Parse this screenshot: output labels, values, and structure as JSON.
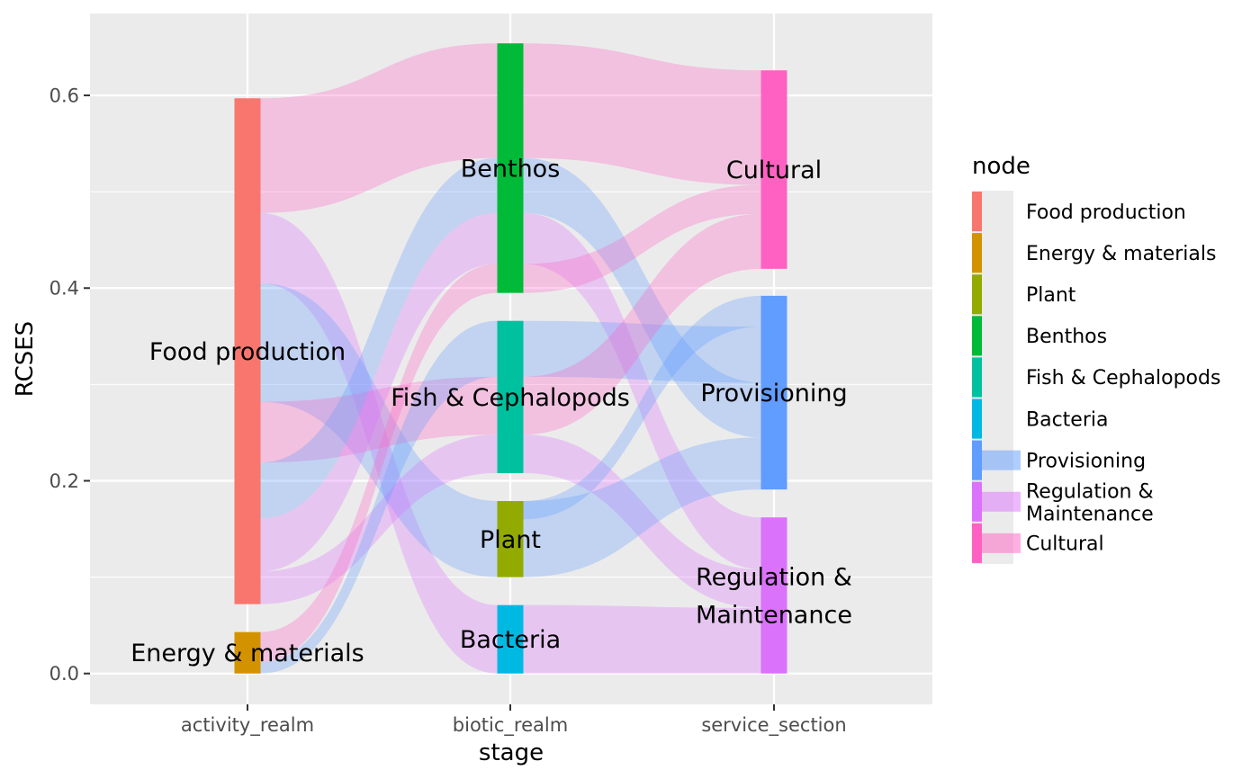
{
  "chart_data": {
    "type": "sankey",
    "title": "",
    "xlabel": "stage",
    "ylabel": "RCSES",
    "ylim": [
      -0.032,
      0.685
    ],
    "yticks": [
      0.0,
      0.2,
      0.4,
      0.6
    ],
    "ytick_labels": [
      "0.0",
      "0.2",
      "0.4",
      "0.6"
    ],
    "stages": [
      "activity_realm",
      "biotic_realm",
      "service_section"
    ],
    "node_colors": {
      "Food production": "#F8766D",
      "Energy & materials": "#D39200",
      "Plant": "#93AA00",
      "Benthos": "#00BA38",
      "Fish & Cephalopods": "#00C19F",
      "Bacteria": "#00B9E3",
      "Provisioning": "#619CFF",
      "Regulation & Maintenance": "#DB72FB",
      "Cultural": "#FF61C3"
    },
    "nodes": [
      {
        "id": "fp",
        "name": "Food production",
        "stage": 0,
        "bottom": 0.072,
        "top": 0.597
      },
      {
        "id": "em",
        "name": "Energy & materials",
        "stage": 0,
        "bottom": 0.0,
        "top": 0.043
      },
      {
        "id": "bn",
        "name": "Benthos",
        "stage": 1,
        "bottom": 0.395,
        "top": 0.654
      },
      {
        "id": "fc",
        "name": "Fish & Cephalopods",
        "stage": 1,
        "bottom": 0.208,
        "top": 0.366
      },
      {
        "id": "pl",
        "name": "Plant",
        "stage": 1,
        "bottom": 0.1,
        "top": 0.179
      },
      {
        "id": "ba",
        "name": "Bacteria",
        "stage": 1,
        "bottom": 0.0,
        "top": 0.071
      },
      {
        "id": "cu",
        "name": "Cultural",
        "stage": 2,
        "bottom": 0.42,
        "top": 0.626
      },
      {
        "id": "pr",
        "name": "Provisioning",
        "stage": 2,
        "bottom": 0.191,
        "top": 0.392
      },
      {
        "id": "rm",
        "name": "Regulation & Maintenance",
        "label_lines": [
          "Regulation &",
          "Maintenance"
        ],
        "stage": 2,
        "bottom": 0.0,
        "top": 0.162
      }
    ],
    "flows": [
      {
        "from_stage": 0,
        "to_stage": 1,
        "l0": 0.478,
        "l1": 0.597,
        "r0": 0.535,
        "r1": 0.654,
        "fill": "Cultural"
      },
      {
        "from_stage": 0,
        "to_stage": 1,
        "l0": 0.405,
        "l1": 0.478,
        "r0": 0.0,
        "r1": 0.071,
        "fill": "Regulation & Maintenance"
      },
      {
        "from_stage": 0,
        "to_stage": 1,
        "l0": 0.282,
        "l1": 0.405,
        "r0": 0.1,
        "r1": 0.179,
        "fill": "Provisioning"
      },
      {
        "from_stage": 0,
        "to_stage": 1,
        "l0": 0.219,
        "l1": 0.282,
        "r0": 0.248,
        "r1": 0.308,
        "fill": "Cultural"
      },
      {
        "from_stage": 0,
        "to_stage": 1,
        "l0": 0.161,
        "l1": 0.219,
        "r0": 0.478,
        "r1": 0.535,
        "fill": "Provisioning"
      },
      {
        "from_stage": 0,
        "to_stage": 1,
        "l0": 0.106,
        "l1": 0.161,
        "r0": 0.425,
        "r1": 0.478,
        "fill": "Regulation & Maintenance"
      },
      {
        "from_stage": 0,
        "to_stage": 1,
        "l0": 0.072,
        "l1": 0.106,
        "r0": 0.208,
        "r1": 0.248,
        "fill": "Regulation & Maintenance"
      },
      {
        "from_stage": 0,
        "to_stage": 1,
        "l0": 0.012,
        "l1": 0.043,
        "r0": 0.395,
        "r1": 0.425,
        "fill": "Cultural"
      },
      {
        "from_stage": 0,
        "to_stage": 1,
        "l0": 0.0,
        "l1": 0.012,
        "r0": 0.308,
        "r1": 0.366,
        "fill": "Provisioning"
      },
      {
        "from_stage": 1,
        "to_stage": 2,
        "l0": 0.535,
        "l1": 0.654,
        "r0": 0.507,
        "r1": 0.626,
        "fill": "Cultural"
      },
      {
        "from_stage": 1,
        "to_stage": 2,
        "l0": 0.478,
        "l1": 0.535,
        "r0": 0.245,
        "r1": 0.302,
        "fill": "Provisioning"
      },
      {
        "from_stage": 1,
        "to_stage": 2,
        "l0": 0.425,
        "l1": 0.478,
        "r0": 0.108,
        "r1": 0.162,
        "fill": "Regulation & Maintenance"
      },
      {
        "from_stage": 1,
        "to_stage": 2,
        "l0": 0.395,
        "l1": 0.425,
        "r0": 0.477,
        "r1": 0.507,
        "fill": "Cultural"
      },
      {
        "from_stage": 1,
        "to_stage": 2,
        "l0": 0.308,
        "l1": 0.366,
        "r0": 0.302,
        "r1": 0.36,
        "fill": "Provisioning"
      },
      {
        "from_stage": 1,
        "to_stage": 2,
        "l0": 0.248,
        "l1": 0.308,
        "r0": 0.42,
        "r1": 0.477,
        "fill": "Cultural"
      },
      {
        "from_stage": 1,
        "to_stage": 2,
        "l0": 0.208,
        "l1": 0.248,
        "r0": 0.068,
        "r1": 0.108,
        "fill": "Regulation & Maintenance"
      },
      {
        "from_stage": 1,
        "to_stage": 2,
        "l0": 0.1,
        "l1": 0.179,
        "r0": 0.191,
        "r1": 0.245,
        "fill": "Provisioning"
      },
      {
        "from_stage": 1,
        "to_stage": 2,
        "l0": 0.0,
        "l1": 0.071,
        "r0": 0.0,
        "r1": 0.068,
        "fill": "Regulation & Maintenance"
      },
      {
        "from_stage": 1,
        "to_stage": 2,
        "l0": 0.16,
        "l1": 0.179,
        "r0": 0.36,
        "r1": 0.392,
        "fill": "Provisioning"
      }
    ],
    "flow_opacity": 0.3,
    "grid": true,
    "legend": {
      "title": "node",
      "placement": "right",
      "entries": [
        {
          "label": "Food production",
          "swatch": "node"
        },
        {
          "label": "Energy & materials",
          "swatch": "node"
        },
        {
          "label": "Plant",
          "swatch": "node"
        },
        {
          "label": "Benthos",
          "swatch": "node"
        },
        {
          "label": "Fish & Cephalopods",
          "swatch": "node"
        },
        {
          "label": "Bacteria",
          "swatch": "node"
        },
        {
          "label": "Provisioning",
          "swatch": "node+flow"
        },
        {
          "label": "Regulation & Maintenance",
          "label_lines": [
            "Regulation &",
            "Maintenance"
          ],
          "swatch": "node+flow"
        },
        {
          "label": "Cultural",
          "swatch": "node+flow"
        }
      ]
    }
  }
}
